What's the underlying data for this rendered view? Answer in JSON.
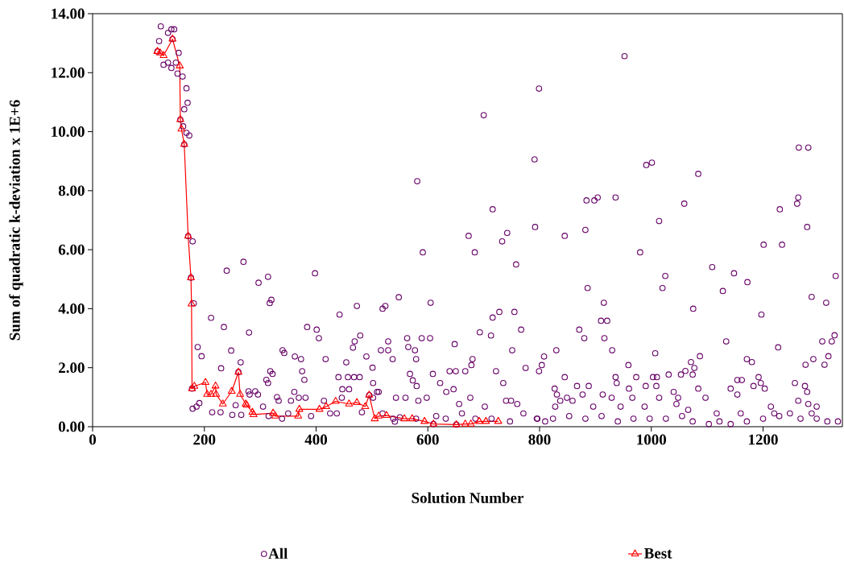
{
  "chart_data": {
    "type": "scatter",
    "xlabel": "Solution Number",
    "ylabel": "Sum of quadratic k-deviation x 1E+6",
    "xlim": [
      0,
      1342
    ],
    "ylim": [
      0,
      14
    ],
    "xticks": [
      0,
      200,
      400,
      600,
      800,
      1000,
      1200
    ],
    "yticks": [
      {
        "value": 0,
        "label": "0.00"
      },
      {
        "value": 2,
        "label": "2.00"
      },
      {
        "value": 4,
        "label": "4.00"
      },
      {
        "value": 6,
        "label": "6.00"
      },
      {
        "value": 8,
        "label": "8.00"
      },
      {
        "value": 10,
        "label": "10.00"
      },
      {
        "value": 12,
        "label": "12.00"
      },
      {
        "value": 14,
        "label": "14.00"
      }
    ],
    "grid": false,
    "legend": "bottom",
    "series": [
      {
        "name": "All",
        "marker": "circle",
        "color": "#660066",
        "x": [
          122,
          119,
          135,
          141,
          146,
          154,
          127,
          135,
          141,
          149,
          152,
          161,
          168,
          170,
          164,
          162,
          168,
          173,
          179,
          181,
          188,
          195,
          179,
          186,
          191,
          212,
          230,
          235,
          240,
          248,
          265,
          270,
          280,
          297,
          314,
          320,
          317,
          311,
          318,
          340,
          214,
          229,
          250,
          256,
          266,
          279,
          291,
          330,
          398,
          343,
          362,
          373,
          384,
          401,
          405,
          375,
          379,
          417,
          442,
          454,
          466,
          469,
          479,
          473,
          490,
          501,
          440,
          457,
          468,
          478,
          447,
          459,
          519,
          524,
          548,
          516,
          529,
          529,
          537,
          502,
          512,
          591,
          684,
          733,
          758,
          605,
          563,
          589,
          604,
          565,
          577,
          579,
          568,
          573,
          580,
          609,
          648,
          639,
          650,
          667,
          678,
          680,
          693,
          713,
          716,
          728,
          755,
          767,
          751,
          775,
          799,
          804,
          808,
          722,
          735,
          622,
          633,
          646,
          676,
          656,
          702,
          740,
          749,
          760,
          598,
          583,
          543,
          560,
          541,
          538,
          322,
          314,
          333,
          361,
          369,
          296,
          281,
          305,
          355,
          381,
          414,
          446,
          502,
          509,
          315,
          339,
          350,
          391,
          425,
          437,
          482,
          519,
          550,
          579,
          615,
          632,
          661,
          685,
          714,
          747,
          771,
          796,
          810,
          980,
          1025,
          1020,
          1201,
          1234,
          1330,
          1109,
          1148,
          1172,
          1128,
          1075,
          1197,
          1287,
          1313,
          1134,
          1227,
          1328,
          1323,
          1306,
          1290,
          1317,
          1310,
          1276,
          886,
          915,
          910,
          921,
          871,
          880,
          916,
          930,
          830,
          1007,
          959,
          1087,
          1071,
          1077,
          1061,
          1053,
          1074,
          1031,
          1171,
          1180,
          1192,
          1196,
          1203,
          1183,
          1154,
          1162,
          1142,
          1154,
          1257,
          1275,
          1279,
          845,
          827,
          831,
          837,
          828,
          849,
          859,
          867,
          877,
          888,
          936,
          938,
          960,
          966,
          973,
          990,
          1003,
          1010,
          1009,
          1014,
          1040,
          1048,
          1097,
          1084,
          1214,
          1263,
          1281,
          1296,
          896,
          929,
          945,
          988,
          913,
          1045,
          1066,
          795,
          824,
          853,
          882,
          911,
          940,
          968,
          997,
          1026,
          1055,
          1074,
          1103,
          1122,
          1142,
          1171,
          1200,
          1229,
          1248,
          1267,
          1296,
          1315,
          1334,
          1117,
          1160,
          1220,
          1287,
          581,
          952,
          799,
          700,
          791,
          991,
          1001,
          1084,
          1264,
          1281,
          716,
          884,
          898,
          904,
          936,
          1059,
          1263,
          1261,
          1230,
          1014,
          673,
          742,
          792,
          845,
          882,
          1279,
          116,
          143,
          157,
          164,
          171,
          176,
          178,
          261,
          495,
          610,
          651
        ],
        "values": [
          13.57,
          13.07,
          13.35,
          13.47,
          13.47,
          12.67,
          12.27,
          12.34,
          12.16,
          12.34,
          11.97,
          11.87,
          11.47,
          10.98,
          10.76,
          10.18,
          9.96,
          9.87,
          6.28,
          4.18,
          2.7,
          2.39,
          0.61,
          0.68,
          0.8,
          3.69,
          1.98,
          3.38,
          5.29,
          2.58,
          2.18,
          5.59,
          3.19,
          4.88,
          5.08,
          4.3,
          4.19,
          1.59,
          1.88,
          2.59,
          0.49,
          0.49,
          0.4,
          0.73,
          0.4,
          1.2,
          1.2,
          1.0,
          5.2,
          2.5,
          2.38,
          2.29,
          3.38,
          3.29,
          3.0,
          1.88,
          1.59,
          2.29,
          3.8,
          2.18,
          2.68,
          2.89,
          3.09,
          4.09,
          2.38,
          2.0,
          1.68,
          1.68,
          1.68,
          1.68,
          1.27,
          1.27,
          4.0,
          4.09,
          4.39,
          2.59,
          2.89,
          2.59,
          2.29,
          1.48,
          1.18,
          5.91,
          5.91,
          6.28,
          5.5,
          4.2,
          3.0,
          3.0,
          3.0,
          2.7,
          2.59,
          2.29,
          1.79,
          1.57,
          1.38,
          1.79,
          2.8,
          1.88,
          1.88,
          1.88,
          2.09,
          2.29,
          3.2,
          3.09,
          3.7,
          3.89,
          3.89,
          3.29,
          2.59,
          1.99,
          1.88,
          2.09,
          2.38,
          1.88,
          1.48,
          1.48,
          1.18,
          1.27,
          0.98,
          0.77,
          0.68,
          0.88,
          0.88,
          0.77,
          0.98,
          0.88,
          0.98,
          0.98,
          0.17,
          0.27,
          1.79,
          1.48,
          0.88,
          1.18,
          0.98,
          1.09,
          1.09,
          0.68,
          0.88,
          0.98,
          0.88,
          0.98,
          0.98,
          1.18,
          0.36,
          0.27,
          0.45,
          0.36,
          0.45,
          0.45,
          0.49,
          0.45,
          0.32,
          0.27,
          0.36,
          0.27,
          0.45,
          0.27,
          0.27,
          0.18,
          0.45,
          0.27,
          0.18,
          5.91,
          5.11,
          4.7,
          6.17,
          6.17,
          5.11,
          5.41,
          5.2,
          4.9,
          4.6,
          4.0,
          3.8,
          4.4,
          4.2,
          2.89,
          2.69,
          3.1,
          2.89,
          2.89,
          2.29,
          2.39,
          2.1,
          2.1,
          4.7,
          4.2,
          3.59,
          3.59,
          3.29,
          3.0,
          3.0,
          2.59,
          2.59,
          2.49,
          2.09,
          2.39,
          2.19,
          1.99,
          1.89,
          1.77,
          1.77,
          1.77,
          2.29,
          2.19,
          1.68,
          1.48,
          1.29,
          1.38,
          1.58,
          1.58,
          1.29,
          1.09,
          1.48,
          1.38,
          1.18,
          1.68,
          1.29,
          1.09,
          0.88,
          0.68,
          0.98,
          0.88,
          1.38,
          1.09,
          1.38,
          1.68,
          1.48,
          1.29,
          0.98,
          1.68,
          1.38,
          1.68,
          1.68,
          1.38,
          0.98,
          1.18,
          0.98,
          0.98,
          1.29,
          0.68,
          0.88,
          0.77,
          0.68,
          0.68,
          0.98,
          0.68,
          0.68,
          1.09,
          0.77,
          0.57,
          0.27,
          0.27,
          0.36,
          0.27,
          0.36,
          0.18,
          0.27,
          0.27,
          0.27,
          0.36,
          0.18,
          0.09,
          0.18,
          0.09,
          0.18,
          0.27,
          0.36,
          0.45,
          0.27,
          0.27,
          0.18,
          0.18,
          0.45,
          0.45,
          0.45,
          0.45,
          8.32,
          12.56,
          11.46,
          10.56,
          9.06,
          8.87,
          8.95,
          8.57,
          9.46,
          9.46,
          7.37,
          7.67,
          7.67,
          7.77,
          7.77,
          7.56,
          7.77,
          7.56,
          7.37,
          6.97,
          6.47,
          6.57,
          6.77,
          6.47,
          6.67,
          6.77,
          12.72,
          13.14,
          10.41,
          9.57,
          6.46,
          5.05,
          1.29,
          1.85,
          1.07,
          0.09,
          0.07
        ]
      },
      {
        "name": "Best",
        "type": "line",
        "marker": "triangle",
        "color": "#ff0000",
        "x": [
          116,
          121,
          127,
          143,
          156,
          157,
          159,
          164,
          171,
          176,
          177,
          178,
          182,
          202,
          205,
          212,
          220,
          221,
          233,
          249,
          261,
          264,
          274,
          276,
          286,
          288,
          323,
          327,
          368,
          370,
          406,
          418,
          435,
          459,
          473,
          488,
          495,
          505,
          512,
          526,
          558,
          572,
          594,
          610,
          651,
          667,
          677,
          692,
          704,
          726
        ],
        "values": [
          12.72,
          12.67,
          12.58,
          13.14,
          12.23,
          10.41,
          10.09,
          9.57,
          6.46,
          5.05,
          4.16,
          1.29,
          1.37,
          1.5,
          1.1,
          1.1,
          1.38,
          1.1,
          0.77,
          1.2,
          1.85,
          1.1,
          0.77,
          0.73,
          0.49,
          0.41,
          0.46,
          0.36,
          0.36,
          0.59,
          0.59,
          0.68,
          0.86,
          0.77,
          0.82,
          0.68,
          1.07,
          0.27,
          0.36,
          0.38,
          0.27,
          0.27,
          0.18,
          0.09,
          0.07,
          0.09,
          0.09,
          0.18,
          0.18,
          0.18
        ]
      }
    ]
  }
}
